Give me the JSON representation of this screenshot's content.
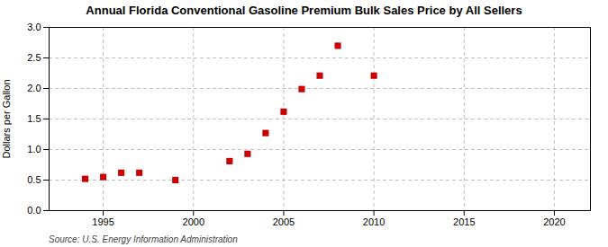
{
  "chart_data": {
    "type": "scatter",
    "title": "Annual Florida Conventional Gasoline Premium Bulk Sales Price by All Sellers",
    "ylabel": "Dollars per Gallon",
    "source": "Source: U.S. Energy Information Administration",
    "x": [
      1994,
      1995,
      1996,
      1997,
      1999,
      2002,
      2003,
      2004,
      2005,
      2006,
      2007,
      2008,
      2010
    ],
    "values": [
      0.52,
      0.55,
      0.62,
      0.62,
      0.5,
      0.81,
      0.93,
      1.27,
      1.62,
      1.99,
      2.21,
      2.7,
      2.21
    ],
    "color": "#cc0000",
    "marker": "square",
    "xlim": [
      1992,
      2022
    ],
    "ylim": [
      0.0,
      3.0
    ],
    "xticks": [
      1995,
      2000,
      2005,
      2010,
      2015,
      2020
    ],
    "yticks": [
      {
        "value": 0.0,
        "label": "0.0"
      },
      0.5,
      {
        "value": 1.0,
        "label": "1.0"
      },
      1.5,
      {
        "value": 2.0,
        "label": "2.0"
      },
      2.5,
      {
        "value": 3.0,
        "label": "3.0"
      }
    ],
    "grid": true
  }
}
